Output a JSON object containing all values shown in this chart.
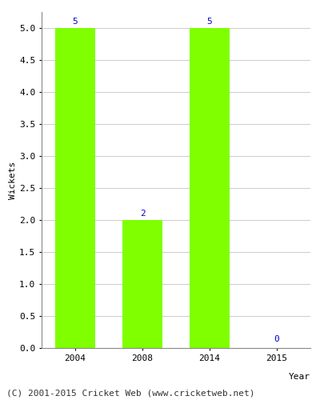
{
  "years": [
    "2004",
    "2008",
    "2014",
    "2015"
  ],
  "values": [
    5,
    2,
    5,
    0
  ],
  "bar_color": "#7FFF00",
  "bar_edgecolor": "#7FFF00",
  "label_color": "#0000CC",
  "xlabel": "Year",
  "ylabel": "Wickets",
  "ylim": [
    0,
    5.25
  ],
  "yticks": [
    0.0,
    0.5,
    1.0,
    1.5,
    2.0,
    2.5,
    3.0,
    3.5,
    4.0,
    4.5,
    5.0
  ],
  "grid_color": "#cccccc",
  "footer": "(C) 2001-2015 Cricket Web (www.cricketweb.net)",
  "label_fontsize": 8,
  "axis_fontsize": 8,
  "footer_fontsize": 8,
  "bar_width": 0.6
}
